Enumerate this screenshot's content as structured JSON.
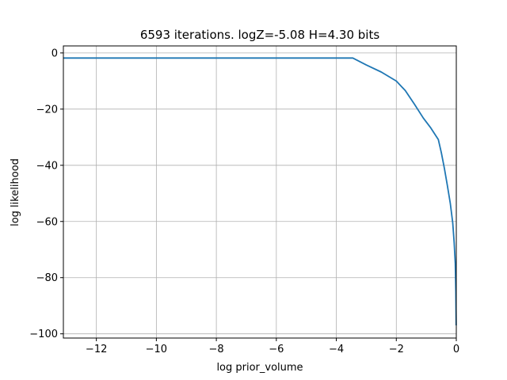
{
  "chart_data": {
    "type": "line",
    "title": "6593 iterations. logZ=-5.08 H=4.30 bits",
    "xlabel": "log prior_volume",
    "ylabel": "log likelihood",
    "xlim": [
      -13.1,
      0
    ],
    "ylim": [
      -101.5,
      2.5
    ],
    "grid": true,
    "xticks": [
      {
        "value": -12,
        "label": "−12"
      },
      {
        "value": -10,
        "label": "−10"
      },
      {
        "value": -8,
        "label": "−8"
      },
      {
        "value": -6,
        "label": "−6"
      },
      {
        "value": -4,
        "label": "−4"
      },
      {
        "value": -2,
        "label": "−2"
      },
      {
        "value": 0,
        "label": "0"
      }
    ],
    "yticks": [
      {
        "value": 0,
        "label": "0"
      },
      {
        "value": -20,
        "label": "−20"
      },
      {
        "value": -40,
        "label": "−40"
      },
      {
        "value": -60,
        "label": "−60"
      },
      {
        "value": -80,
        "label": "−80"
      },
      {
        "value": -100,
        "label": "−100"
      }
    ],
    "series": [
      {
        "color": "#1f77b4",
        "x": [
          -13.1,
          -3.45,
          -3.0,
          -2.5,
          -2.0,
          -1.7,
          -1.4,
          -1.1,
          -0.85,
          -0.6,
          -0.5,
          -0.4,
          -0.3,
          -0.2,
          -0.12,
          -0.07,
          -0.035,
          -0.015,
          -0.004
        ],
        "y": [
          -1.8,
          -1.8,
          -4.3,
          -6.8,
          -10.0,
          -13.4,
          -18.2,
          -23.2,
          -26.7,
          -30.8,
          -35.5,
          -41.0,
          -47.0,
          -53.5,
          -60.5,
          -67.5,
          -75.0,
          -85.0,
          -97.0
        ]
      }
    ]
  }
}
